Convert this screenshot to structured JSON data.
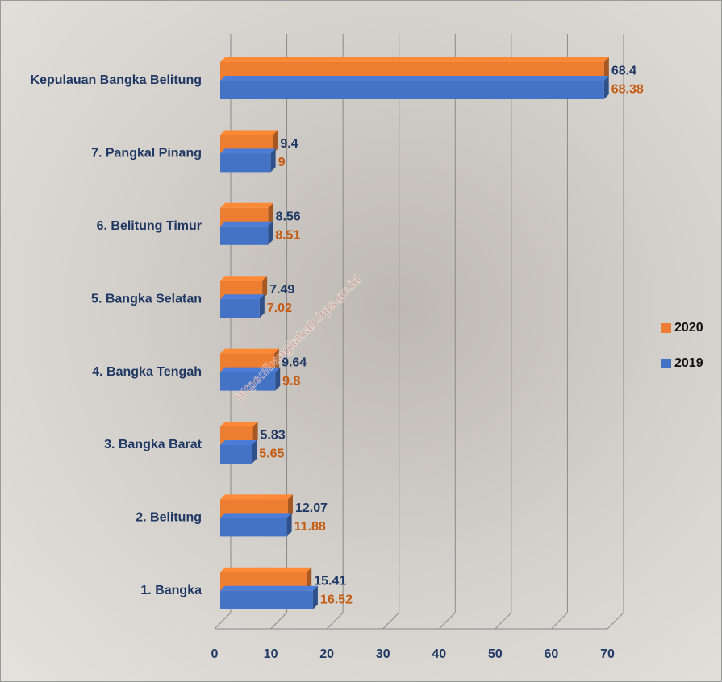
{
  "chart_data": {
    "type": "bar",
    "orientation": "horizontal",
    "categories": [
      "Kepulauan Bangka Belitung",
      "7. Pangkal Pinang",
      "6. Belitung Timur",
      "5. Bangka Selatan",
      "4. Bangka Tengah",
      "3. Bangka Barat",
      "2. Belitung",
      "1. Bangka"
    ],
    "series": [
      {
        "name": "2020",
        "color": "#ed7d31",
        "label_color": "#1f3864",
        "values": [
          68.4,
          9.4,
          8.56,
          7.49,
          9.64,
          5.83,
          12.07,
          15.41
        ]
      },
      {
        "name": "2019",
        "color": "#4472c4",
        "label_color": "#c55a11",
        "values": [
          68.38,
          9,
          8.51,
          7.02,
          9.8,
          5.65,
          11.88,
          16.52
        ]
      }
    ],
    "xlim": [
      0,
      70
    ],
    "xticks": [
      0,
      10,
      20,
      30,
      40,
      50,
      60,
      70
    ],
    "grid": true,
    "legend": "right",
    "watermark": "https://bangkakab.bps.go.id"
  }
}
